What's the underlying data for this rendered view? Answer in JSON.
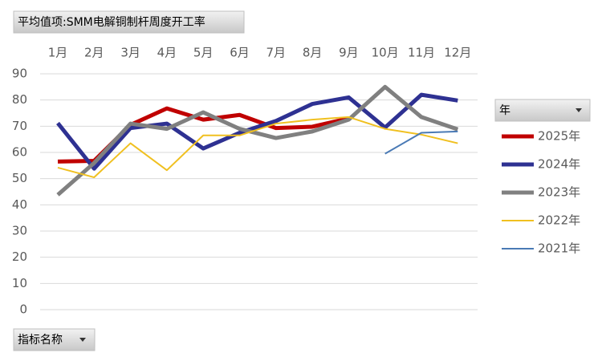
{
  "chart_data": {
    "type": "line",
    "title": "平均值项:SMM电解铜制杆周度开工率",
    "legend_title": "年",
    "filter_label": "指标名称",
    "categories": [
      "1月",
      "2月",
      "3月",
      "4月",
      "5月",
      "6月",
      "7月",
      "8月",
      "9月",
      "10月",
      "11月",
      "12月"
    ],
    "series": [
      {
        "name": "2025年",
        "color": "#c00000",
        "values": [
          56.5,
          56.8,
          70.5,
          76.8,
          72.5,
          74.3,
          69.3,
          69.8,
          73,
          null,
          null,
          null
        ]
      },
      {
        "name": "2024年",
        "color": "#2e3192",
        "values": [
          71.2,
          53.8,
          69.3,
          71,
          61.5,
          67.5,
          72,
          78.5,
          81,
          69.5,
          82,
          79.8
        ]
      },
      {
        "name": "2023年",
        "color": "#808080",
        "values": [
          43.8,
          56,
          71,
          69,
          75.3,
          69,
          65.5,
          68,
          72.5,
          85,
          73.5,
          68.8
        ]
      },
      {
        "name": "2022年",
        "color": "#f0c020",
        "values": [
          54.2,
          50.5,
          63.5,
          53.2,
          66.5,
          66.5,
          71,
          72.5,
          73.5,
          69,
          66.8,
          63.5
        ]
      },
      {
        "name": "2021年",
        "color": "#4a7ab5",
        "values": [
          null,
          null,
          null,
          null,
          null,
          null,
          null,
          null,
          null,
          59.5,
          67.5,
          68
        ]
      }
    ],
    "ylim": [
      0,
      90
    ],
    "yticks": [
      0,
      10,
      20,
      30,
      40,
      50,
      60,
      70,
      80,
      90
    ],
    "grid": true
  }
}
